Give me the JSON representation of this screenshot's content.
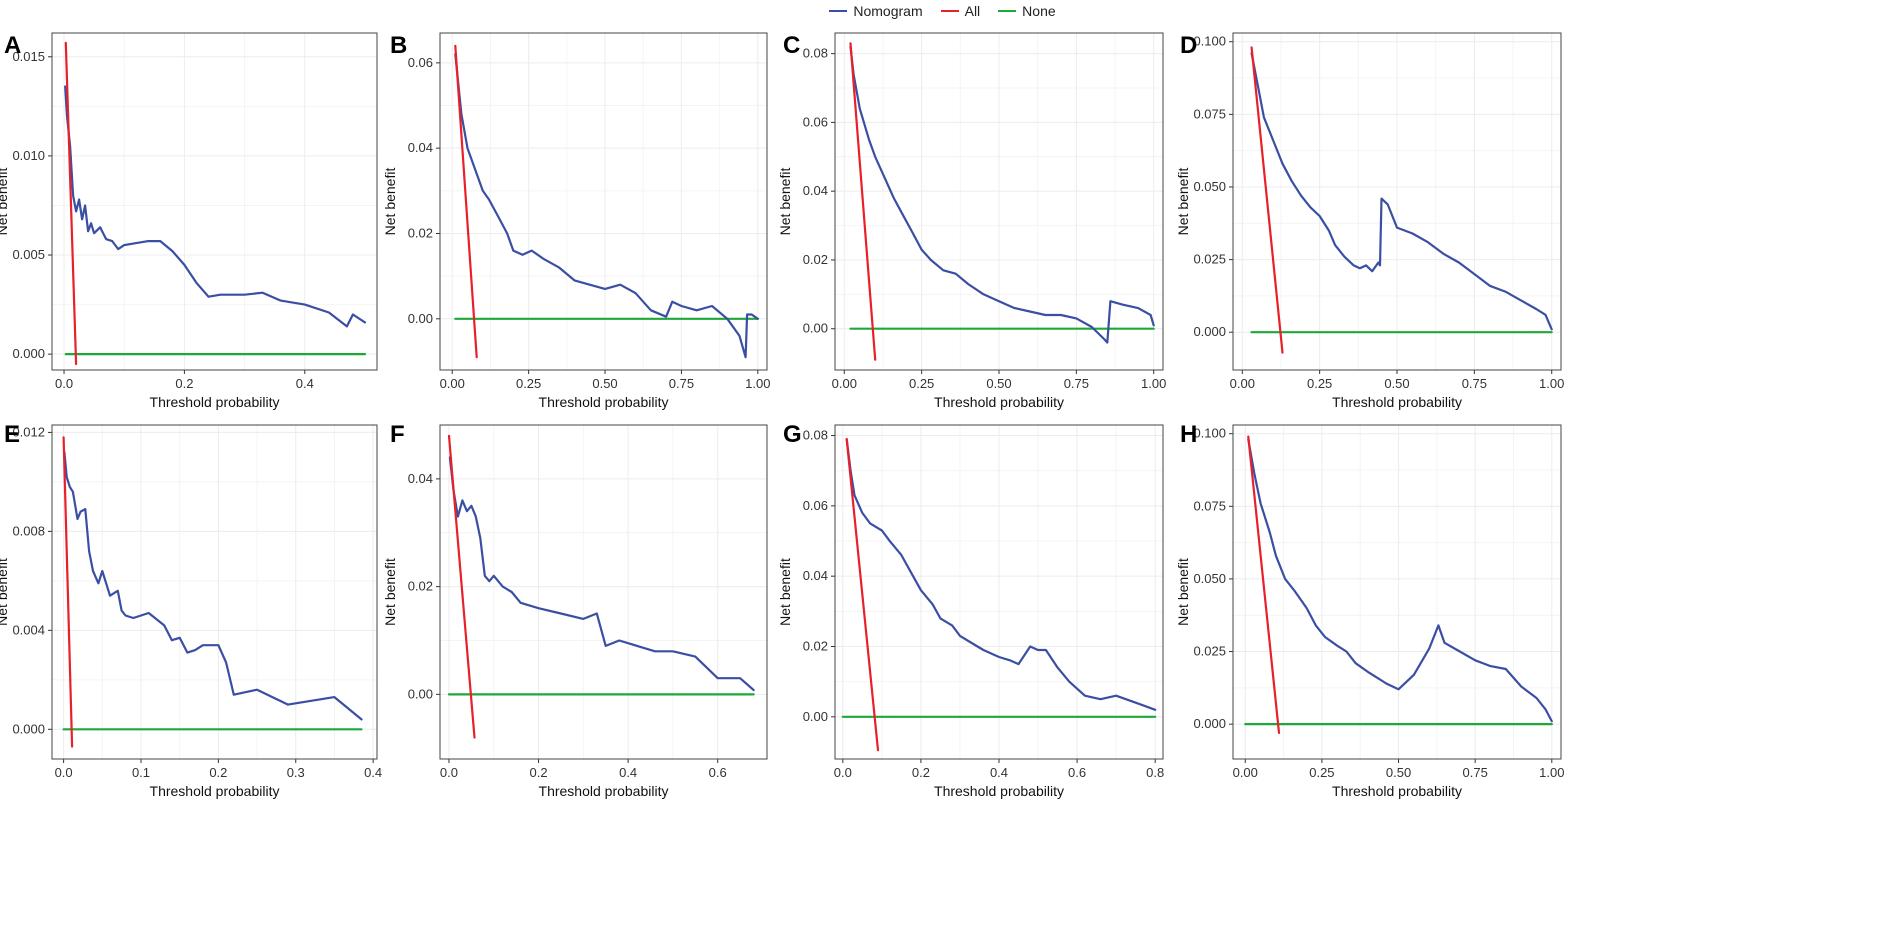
{
  "legend": {
    "items": [
      {
        "label": "Nomogram",
        "color": "#3a4fa3"
      },
      {
        "label": "All",
        "color": "#e8202a"
      },
      {
        "label": "None",
        "color": "#1ea838"
      }
    ]
  },
  "colors": {
    "nomogram": "#3a4fa3",
    "all": "#e8202a",
    "none": "#1ea838",
    "grid": "#ececec",
    "frame": "#444444"
  },
  "chart_data": [
    {
      "panel": "A",
      "type": "line",
      "xlabel": "Threshold probability",
      "ylabel": "Net benefit",
      "xlim": [
        -0.02,
        0.52
      ],
      "ylim": [
        -0.0008,
        0.0162
      ],
      "xticks": [
        0.0,
        0.2,
        0.4
      ],
      "xtick_labels": [
        "0.0",
        "0.2",
        "0.4"
      ],
      "yticks": [
        0.0,
        0.005,
        0.01,
        0.015
      ],
      "ytick_labels": [
        "0.000",
        "0.005",
        "0.010",
        "0.015"
      ],
      "series": [
        {
          "name": "Nomogram",
          "x": [
            0.002,
            0.005,
            0.01,
            0.015,
            0.02,
            0.025,
            0.03,
            0.035,
            0.04,
            0.045,
            0.05,
            0.06,
            0.07,
            0.08,
            0.09,
            0.1,
            0.12,
            0.14,
            0.16,
            0.18,
            0.2,
            0.22,
            0.24,
            0.26,
            0.28,
            0.3,
            0.33,
            0.36,
            0.4,
            0.44,
            0.47,
            0.48,
            0.5
          ],
          "y": [
            0.0135,
            0.012,
            0.0105,
            0.008,
            0.0072,
            0.0078,
            0.0068,
            0.0075,
            0.0062,
            0.0066,
            0.0061,
            0.0064,
            0.0058,
            0.0057,
            0.0053,
            0.0055,
            0.0056,
            0.0057,
            0.0057,
            0.0052,
            0.0045,
            0.0036,
            0.0029,
            0.003,
            0.003,
            0.003,
            0.0031,
            0.0027,
            0.0025,
            0.0021,
            0.0014,
            0.002,
            0.0016
          ]
        },
        {
          "name": "All",
          "x": [
            0.003,
            0.02
          ],
          "y": [
            0.0157,
            -0.0005
          ]
        },
        {
          "name": "None",
          "x": [
            0.003,
            0.5
          ],
          "y": [
            0,
            0
          ]
        }
      ]
    },
    {
      "panel": "B",
      "type": "line",
      "xlabel": "Threshold probability",
      "ylabel": "Net benefit",
      "xlim": [
        -0.04,
        1.03
      ],
      "ylim": [
        -0.012,
        0.067
      ],
      "xticks": [
        0.0,
        0.25,
        0.5,
        0.75,
        1.0
      ],
      "xtick_labels": [
        "0.00",
        "0.25",
        "0.50",
        "0.75",
        "1.00"
      ],
      "yticks": [
        0.0,
        0.02,
        0.04,
        0.06
      ],
      "ytick_labels": [
        "0.00",
        "0.02",
        "0.04",
        "0.06"
      ],
      "series": [
        {
          "name": "Nomogram",
          "x": [
            0.01,
            0.03,
            0.05,
            0.08,
            0.1,
            0.12,
            0.15,
            0.18,
            0.2,
            0.23,
            0.26,
            0.3,
            0.35,
            0.4,
            0.45,
            0.5,
            0.55,
            0.6,
            0.65,
            0.7,
            0.72,
            0.75,
            0.8,
            0.85,
            0.9,
            0.94,
            0.96,
            0.965,
            0.98,
            1.0
          ],
          "y": [
            0.062,
            0.048,
            0.04,
            0.034,
            0.03,
            0.028,
            0.024,
            0.02,
            0.016,
            0.015,
            0.016,
            0.014,
            0.012,
            0.009,
            0.008,
            0.007,
            0.008,
            0.006,
            0.002,
            0.0005,
            0.004,
            0.003,
            0.002,
            0.003,
            0.0,
            -0.004,
            -0.009,
            0.001,
            0.001,
            0.0
          ]
        },
        {
          "name": "All",
          "x": [
            0.01,
            0.08
          ],
          "y": [
            0.064,
            -0.009
          ]
        },
        {
          "name": "None",
          "x": [
            0.01,
            1.0
          ],
          "y": [
            0,
            0
          ]
        }
      ]
    },
    {
      "panel": "C",
      "type": "line",
      "xlabel": "Threshold probability",
      "ylabel": "Net benefit",
      "xlim": [
        -0.03,
        1.03
      ],
      "ylim": [
        -0.012,
        0.086
      ],
      "xticks": [
        0.0,
        0.25,
        0.5,
        0.75,
        1.0
      ],
      "xtick_labels": [
        "0.00",
        "0.25",
        "0.50",
        "0.75",
        "1.00"
      ],
      "yticks": [
        0.0,
        0.02,
        0.04,
        0.06,
        0.08
      ],
      "ytick_labels": [
        "0.00",
        "0.02",
        "0.04",
        "0.06",
        "0.08"
      ],
      "series": [
        {
          "name": "Nomogram",
          "x": [
            0.02,
            0.03,
            0.05,
            0.08,
            0.1,
            0.13,
            0.16,
            0.19,
            0.22,
            0.25,
            0.28,
            0.32,
            0.36,
            0.4,
            0.45,
            0.5,
            0.55,
            0.6,
            0.65,
            0.7,
            0.75,
            0.8,
            0.84,
            0.85,
            0.86,
            0.9,
            0.95,
            0.99,
            1.0
          ],
          "y": [
            0.082,
            0.074,
            0.064,
            0.055,
            0.05,
            0.044,
            0.038,
            0.033,
            0.028,
            0.023,
            0.02,
            0.017,
            0.016,
            0.013,
            0.01,
            0.008,
            0.006,
            0.005,
            0.004,
            0.004,
            0.003,
            0.0005,
            -0.003,
            -0.004,
            0.008,
            0.007,
            0.006,
            0.004,
            0.001
          ]
        },
        {
          "name": "All",
          "x": [
            0.02,
            0.1
          ],
          "y": [
            0.083,
            -0.009
          ]
        },
        {
          "name": "None",
          "x": [
            0.02,
            1.0
          ],
          "y": [
            0,
            0
          ]
        }
      ]
    },
    {
      "panel": "D",
      "type": "line",
      "xlabel": "Threshold probability",
      "ylabel": "Net benefit",
      "xlim": [
        -0.03,
        1.03
      ],
      "ylim": [
        -0.013,
        0.103
      ],
      "xticks": [
        0.0,
        0.25,
        0.5,
        0.75,
        1.0
      ],
      "xtick_labels": [
        "0.00",
        "0.25",
        "0.50",
        "0.75",
        "1.00"
      ],
      "yticks": [
        0.0,
        0.025,
        0.05,
        0.075,
        0.1
      ],
      "ytick_labels": [
        "0.000",
        "0.025",
        "0.050",
        "0.075",
        "0.100"
      ],
      "series": [
        {
          "name": "Nomogram",
          "x": [
            0.03,
            0.05,
            0.07,
            0.1,
            0.13,
            0.16,
            0.19,
            0.22,
            0.25,
            0.28,
            0.3,
            0.33,
            0.36,
            0.38,
            0.4,
            0.42,
            0.44,
            0.445,
            0.45,
            0.47,
            0.5,
            0.55,
            0.6,
            0.65,
            0.7,
            0.75,
            0.8,
            0.85,
            0.9,
            0.95,
            0.98,
            1.0
          ],
          "y": [
            0.096,
            0.085,
            0.074,
            0.066,
            0.058,
            0.052,
            0.047,
            0.043,
            0.04,
            0.035,
            0.03,
            0.026,
            0.023,
            0.022,
            0.023,
            0.021,
            0.024,
            0.023,
            0.046,
            0.044,
            0.036,
            0.034,
            0.031,
            0.027,
            0.024,
            0.02,
            0.016,
            0.014,
            0.011,
            0.008,
            0.006,
            0.001
          ]
        },
        {
          "name": "All",
          "x": [
            0.03,
            0.13
          ],
          "y": [
            0.098,
            -0.007
          ]
        },
        {
          "name": "None",
          "x": [
            0.03,
            1.0
          ],
          "y": [
            0,
            0
          ]
        }
      ]
    },
    {
      "panel": "E",
      "type": "line",
      "xlabel": "Threshold probability",
      "ylabel": "Net benefit",
      "xlim": [
        -0.015,
        0.405
      ],
      "ylim": [
        -0.0012,
        0.0123
      ],
      "xticks": [
        0.0,
        0.1,
        0.2,
        0.3,
        0.4
      ],
      "xtick_labels": [
        "0.0",
        "0.1",
        "0.2",
        "0.3",
        "0.4"
      ],
      "yticks": [
        0.0,
        0.004,
        0.008,
        0.012
      ],
      "ytick_labels": [
        "0.000",
        "0.004",
        "0.008",
        "0.012"
      ],
      "series": [
        {
          "name": "Nomogram",
          "x": [
            0.001,
            0.004,
            0.008,
            0.012,
            0.018,
            0.022,
            0.028,
            0.033,
            0.038,
            0.045,
            0.05,
            0.06,
            0.065,
            0.07,
            0.075,
            0.08,
            0.09,
            0.11,
            0.13,
            0.14,
            0.15,
            0.16,
            0.17,
            0.18,
            0.2,
            0.21,
            0.22,
            0.25,
            0.29,
            0.35,
            0.385
          ],
          "y": [
            0.0112,
            0.0102,
            0.0098,
            0.0096,
            0.0085,
            0.0088,
            0.0089,
            0.0072,
            0.0064,
            0.0059,
            0.0064,
            0.0054,
            0.0055,
            0.0056,
            0.0048,
            0.0046,
            0.0045,
            0.0047,
            0.0042,
            0.0036,
            0.0037,
            0.0031,
            0.0032,
            0.0034,
            0.0034,
            0.0027,
            0.0014,
            0.0016,
            0.001,
            0.0013,
            0.0004
          ]
        },
        {
          "name": "All",
          "x": [
            0.0,
            0.011
          ],
          "y": [
            0.0118,
            -0.0007
          ]
        },
        {
          "name": "None",
          "x": [
            0.0,
            0.385
          ],
          "y": [
            0,
            0
          ]
        }
      ]
    },
    {
      "panel": "F",
      "type": "line",
      "xlabel": "Threshold probability",
      "ylabel": "Net benefit",
      "xlim": [
        -0.02,
        0.71
      ],
      "ylim": [
        -0.012,
        0.05
      ],
      "xticks": [
        0.0,
        0.2,
        0.4,
        0.6
      ],
      "xtick_labels": [
        "0.0",
        "0.2",
        "0.4",
        "0.6"
      ],
      "yticks": [
        0.0,
        0.02,
        0.04
      ],
      "ytick_labels": [
        "0.00",
        "0.02",
        "0.04"
      ],
      "series": [
        {
          "name": "Nomogram",
          "x": [
            0.002,
            0.01,
            0.02,
            0.03,
            0.04,
            0.05,
            0.06,
            0.07,
            0.08,
            0.09,
            0.1,
            0.12,
            0.14,
            0.16,
            0.2,
            0.25,
            0.3,
            0.33,
            0.35,
            0.38,
            0.42,
            0.46,
            0.5,
            0.55,
            0.6,
            0.65,
            0.68
          ],
          "y": [
            0.044,
            0.038,
            0.033,
            0.036,
            0.034,
            0.035,
            0.033,
            0.029,
            0.022,
            0.021,
            0.022,
            0.02,
            0.019,
            0.017,
            0.016,
            0.015,
            0.014,
            0.015,
            0.009,
            0.01,
            0.009,
            0.008,
            0.008,
            0.007,
            0.003,
            0.003,
            0.0008
          ]
        },
        {
          "name": "All",
          "x": [
            0.0,
            0.057
          ],
          "y": [
            0.048,
            -0.008
          ]
        },
        {
          "name": "None",
          "x": [
            0.0,
            0.68
          ],
          "y": [
            0,
            0
          ]
        }
      ]
    },
    {
      "panel": "G",
      "type": "line",
      "xlabel": "Threshold probability",
      "ylabel": "Net benefit",
      "xlim": [
        -0.02,
        0.82
      ],
      "ylim": [
        -0.012,
        0.083
      ],
      "xticks": [
        0.0,
        0.2,
        0.4,
        0.6,
        0.8
      ],
      "xtick_labels": [
        "0.0",
        "0.2",
        "0.4",
        "0.6",
        "0.8"
      ],
      "yticks": [
        0.0,
        0.02,
        0.04,
        0.06,
        0.08
      ],
      "ytick_labels": [
        "0.00",
        "0.02",
        "0.04",
        "0.06",
        "0.08"
      ],
      "series": [
        {
          "name": "Nomogram",
          "x": [
            0.01,
            0.02,
            0.03,
            0.05,
            0.07,
            0.1,
            0.12,
            0.15,
            0.18,
            0.2,
            0.23,
            0.25,
            0.28,
            0.3,
            0.33,
            0.36,
            0.4,
            0.43,
            0.45,
            0.48,
            0.5,
            0.52,
            0.55,
            0.58,
            0.62,
            0.66,
            0.7,
            0.75,
            0.8
          ],
          "y": [
            0.079,
            0.07,
            0.063,
            0.058,
            0.055,
            0.053,
            0.05,
            0.046,
            0.04,
            0.036,
            0.032,
            0.028,
            0.026,
            0.023,
            0.021,
            0.019,
            0.017,
            0.016,
            0.015,
            0.02,
            0.019,
            0.019,
            0.014,
            0.01,
            0.006,
            0.005,
            0.006,
            0.004,
            0.002
          ]
        },
        {
          "name": "All",
          "x": [
            0.01,
            0.09
          ],
          "y": [
            0.079,
            -0.0095
          ]
        },
        {
          "name": "None",
          "x": [
            0.0,
            0.8
          ],
          "y": [
            0,
            0
          ]
        }
      ]
    },
    {
      "panel": "H",
      "type": "line",
      "xlabel": "Threshold probability",
      "ylabel": "Net benefit",
      "xlim": [
        -0.04,
        1.03
      ],
      "ylim": [
        -0.012,
        0.103
      ],
      "xticks": [
        0.0,
        0.25,
        0.5,
        0.75,
        1.0
      ],
      "xtick_labels": [
        "0.00",
        "0.25",
        "0.50",
        "0.75",
        "1.00"
      ],
      "yticks": [
        0.0,
        0.025,
        0.05,
        0.075,
        0.1
      ],
      "ytick_labels": [
        "0.000",
        "0.025",
        "0.050",
        "0.075",
        "0.100"
      ],
      "series": [
        {
          "name": "Nomogram",
          "x": [
            0.01,
            0.03,
            0.05,
            0.08,
            0.1,
            0.13,
            0.16,
            0.2,
            0.23,
            0.26,
            0.3,
            0.33,
            0.36,
            0.4,
            0.43,
            0.46,
            0.5,
            0.55,
            0.6,
            0.63,
            0.65,
            0.7,
            0.75,
            0.8,
            0.85,
            0.9,
            0.95,
            0.98,
            1.0
          ],
          "y": [
            0.098,
            0.086,
            0.076,
            0.066,
            0.058,
            0.05,
            0.046,
            0.04,
            0.034,
            0.03,
            0.027,
            0.025,
            0.021,
            0.018,
            0.016,
            0.014,
            0.012,
            0.017,
            0.026,
            0.034,
            0.028,
            0.025,
            0.022,
            0.02,
            0.019,
            0.013,
            0.009,
            0.005,
            0.001
          ]
        },
        {
          "name": "All",
          "x": [
            0.01,
            0.11
          ],
          "y": [
            0.099,
            -0.003
          ]
        },
        {
          "name": "None",
          "x": [
            0.0,
            1.0
          ],
          "y": [
            0,
            0
          ]
        }
      ]
    }
  ]
}
